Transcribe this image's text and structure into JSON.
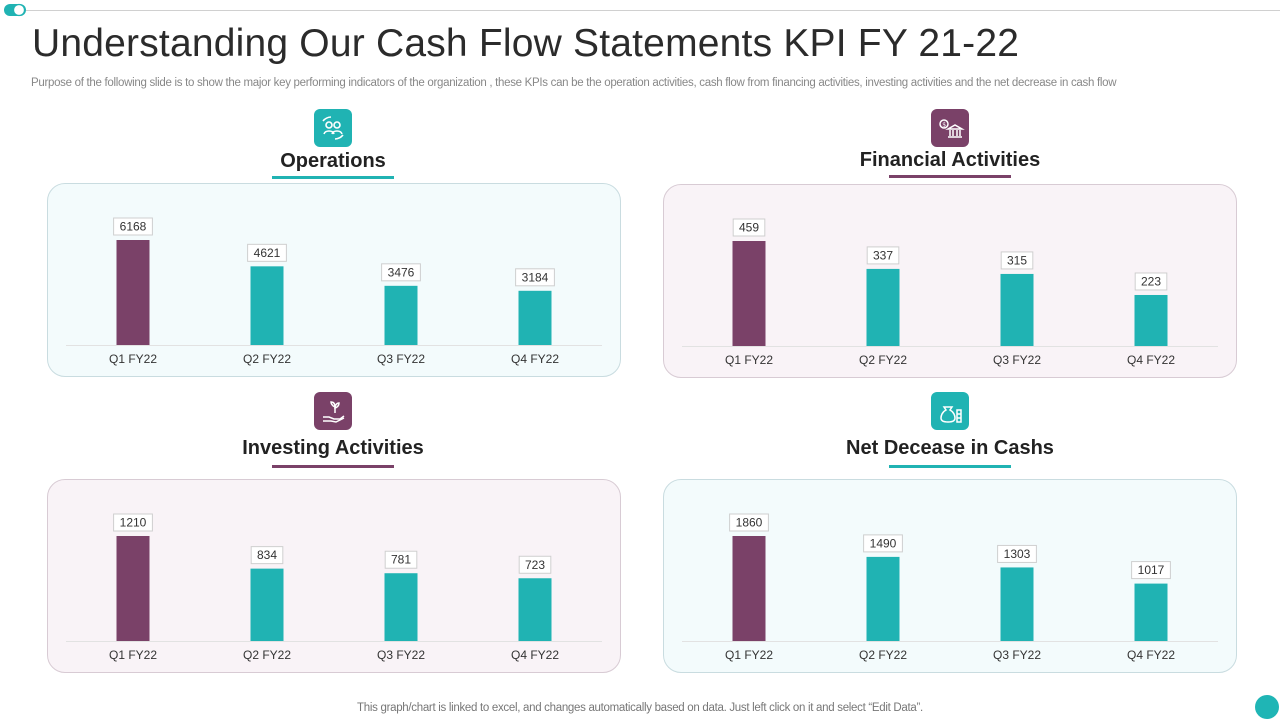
{
  "page": {
    "title": "Understanding Our Cash Flow Statements KPI FY 21-22",
    "subtitle": "Purpose of the following slide is to show the major key performing indicators of the organization , these KPIs can be the operation activities, cash flow from financing activities, investing activities and the net decrease in cash flow",
    "footer": "This graph/chart is linked to excel,  and changes automatically based on data. Just left click on it and select “Edit Data”."
  },
  "colors": {
    "teal": "#20b3b3",
    "purple": "#7a4168"
  },
  "sections": [
    {
      "title": "Operations",
      "icon": "people-cycle-icon"
    },
    {
      "title": "Financial Activities",
      "icon": "money-bank-icon"
    },
    {
      "title": "Investing Activities",
      "icon": "hand-plant-icon"
    },
    {
      "title": "Net Decease in Cashs",
      "icon": "money-bag-coins-icon"
    }
  ],
  "chart_data": [
    {
      "type": "bar",
      "title": "Operations",
      "categories": [
        "Q1 FY22",
        "Q2 FY22",
        "Q3 FY22",
        "Q4 FY22"
      ],
      "values": [
        6168,
        4621,
        3476,
        3184
      ],
      "ylim": [
        0,
        6168
      ],
      "highlight_first": true
    },
    {
      "type": "bar",
      "title": "Financial Activities",
      "categories": [
        "Q1 FY22",
        "Q2 FY22",
        "Q3 FY22",
        "Q4 FY22"
      ],
      "values": [
        459,
        337,
        315,
        223
      ],
      "ylim": [
        0,
        459
      ],
      "highlight_first": true
    },
    {
      "type": "bar",
      "title": "Investing Activities",
      "categories": [
        "Q1 FY22",
        "Q2 FY22",
        "Q3 FY22",
        "Q4 FY22"
      ],
      "values": [
        1210,
        834,
        781,
        723
      ],
      "ylim": [
        0,
        1210
      ],
      "highlight_first": true
    },
    {
      "type": "bar",
      "title": "Net Decease in Cashs",
      "categories": [
        "Q1 FY22",
        "Q2 FY22",
        "Q3 FY22",
        "Q4 FY22"
      ],
      "values": [
        1860,
        1490,
        1303,
        1017
      ],
      "ylim": [
        0,
        1860
      ],
      "highlight_first": true
    }
  ]
}
